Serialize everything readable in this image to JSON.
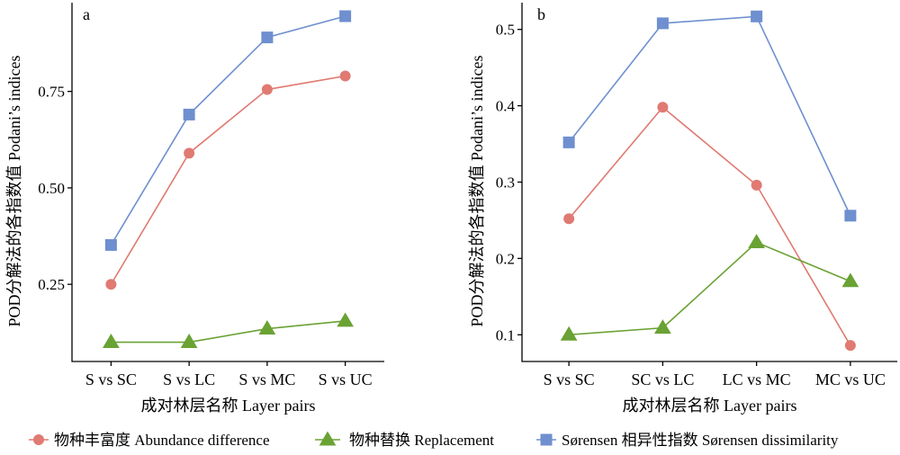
{
  "chart_data": [
    {
      "type": "line",
      "panel_label": "a",
      "categories": [
        "S vs SC",
        "S vs LC",
        "S vs MC",
        "S vs UC"
      ],
      "series": [
        {
          "name": "物种丰富度 Abundance difference",
          "values": [
            0.25,
            0.59,
            0.755,
            0.79
          ]
        },
        {
          "name": "物种替换 Replacement",
          "values": [
            0.1,
            0.1,
            0.135,
            0.155
          ]
        },
        {
          "name": "Sørensen 相异性指数 Sørensen dissimilarity",
          "values": [
            0.352,
            0.69,
            0.89,
            0.945
          ]
        }
      ],
      "xlabel": "成对林层名称 Layer pairs",
      "ylabel": "POD分解法的各指数值 Podani’s indices",
      "ylim": [
        0.05,
        0.98
      ],
      "yticks": [
        0.25,
        0.5,
        0.75
      ],
      "ytick_labels": [
        "0.25",
        "0.50",
        "0.75"
      ],
      "grid": false
    },
    {
      "type": "line",
      "panel_label": "b",
      "categories": [
        "S vs SC",
        "SC vs LC",
        "LC vs MC",
        "MC vs UC"
      ],
      "series": [
        {
          "name": "物种丰富度 Abundance difference",
          "values": [
            0.252,
            0.398,
            0.296,
            0.086
          ]
        },
        {
          "name": "物种替换 Replacement",
          "values": [
            0.1,
            0.109,
            0.221,
            0.17
          ]
        },
        {
          "name": "Sørensen 相异性指数 Sørensen dissimilarity",
          "values": [
            0.352,
            0.508,
            0.517,
            0.256
          ]
        }
      ],
      "xlabel": "成对林层名称 Layer pairs",
      "ylabel": "POD分解法的各指数值 Podani’s indices",
      "ylim": [
        0.065,
        0.535
      ],
      "yticks": [
        0.1,
        0.2,
        0.3,
        0.4,
        0.5
      ],
      "ytick_labels": [
        "0.1",
        "0.2",
        "0.3",
        "0.4",
        "0.5"
      ],
      "grid": false
    }
  ],
  "legend": {
    "placement": "bottom",
    "items": [
      {
        "label": "物种丰富度 Abundance difference",
        "marker": "circle",
        "color": "#e07a72"
      },
      {
        "label": "物种替换 Replacement",
        "marker": "triangle",
        "color": "#6aa234"
      },
      {
        "label": "Sørensen 相异性指数 Sørensen dissimilarity",
        "marker": "square",
        "color": "#6f8fcf"
      }
    ]
  },
  "colors": {
    "abundance_line": "#e07a72",
    "abundance_marker": "#e07a72",
    "replacement_line": "#6aa234",
    "replacement_marker": "#6aa234",
    "sorensen_line": "#6f8fcf",
    "sorensen_marker": "#6f8fcf"
  }
}
